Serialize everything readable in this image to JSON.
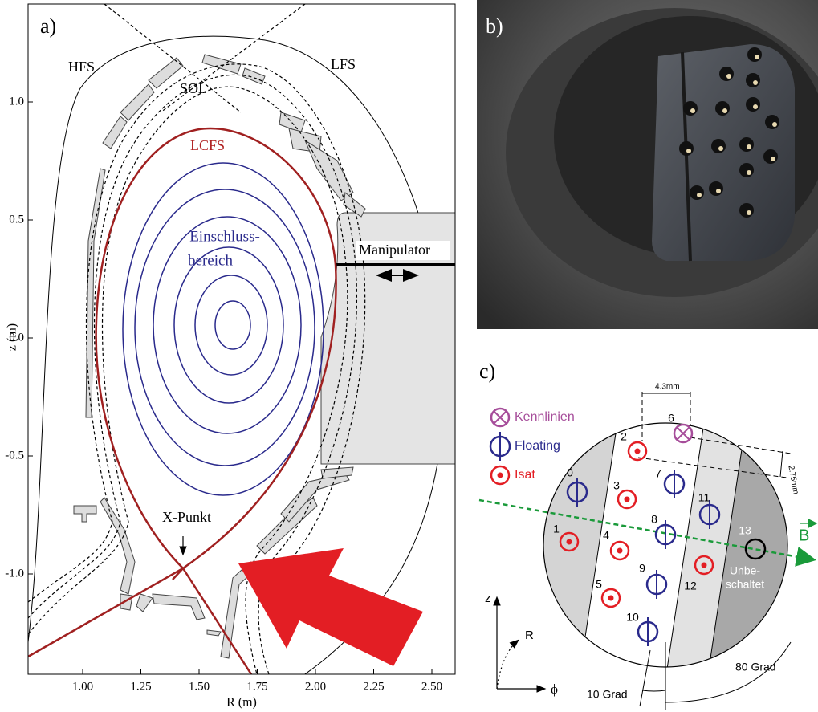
{
  "panel_a": {
    "label": "a)",
    "y_axis_title": "z (m)",
    "x_axis_title": "R (m)",
    "x_ticks": [
      "1.00",
      "1.25",
      "1.50",
      "1.75",
      "2.00",
      "2.25",
      "2.50"
    ],
    "y_ticks": [
      "1.0",
      "0.5",
      "0.0",
      "-0.5",
      "-1.0"
    ],
    "hfs": "HFS",
    "lfs": "LFS",
    "sol": "SOL",
    "lcfs": "LCFS",
    "confinement": [
      "Einschluss-",
      "bereich"
    ],
    "manipulator": "Manipulator",
    "x_point": "X-Punkt"
  },
  "panel_b": {
    "label": "b)"
  },
  "panel_c": {
    "label": "c)",
    "legend": [
      "Kennlinien",
      "Floating",
      "Isat"
    ],
    "probes": [
      "0",
      "1",
      "2",
      "3",
      "4",
      "5",
      "6",
      "7",
      "8",
      "9",
      "10",
      "11",
      "12",
      "13"
    ],
    "spacing_horizontal": "4.3mm",
    "spacing_vertical": "2.75mm",
    "field": "B",
    "unconnected": [
      "Unbe-",
      "schaltet"
    ],
    "axis_z": "z",
    "axis_r": "R",
    "axis_phi": "ϕ",
    "angle_small": "10 Grad",
    "angle_large": "80 Grad"
  }
}
